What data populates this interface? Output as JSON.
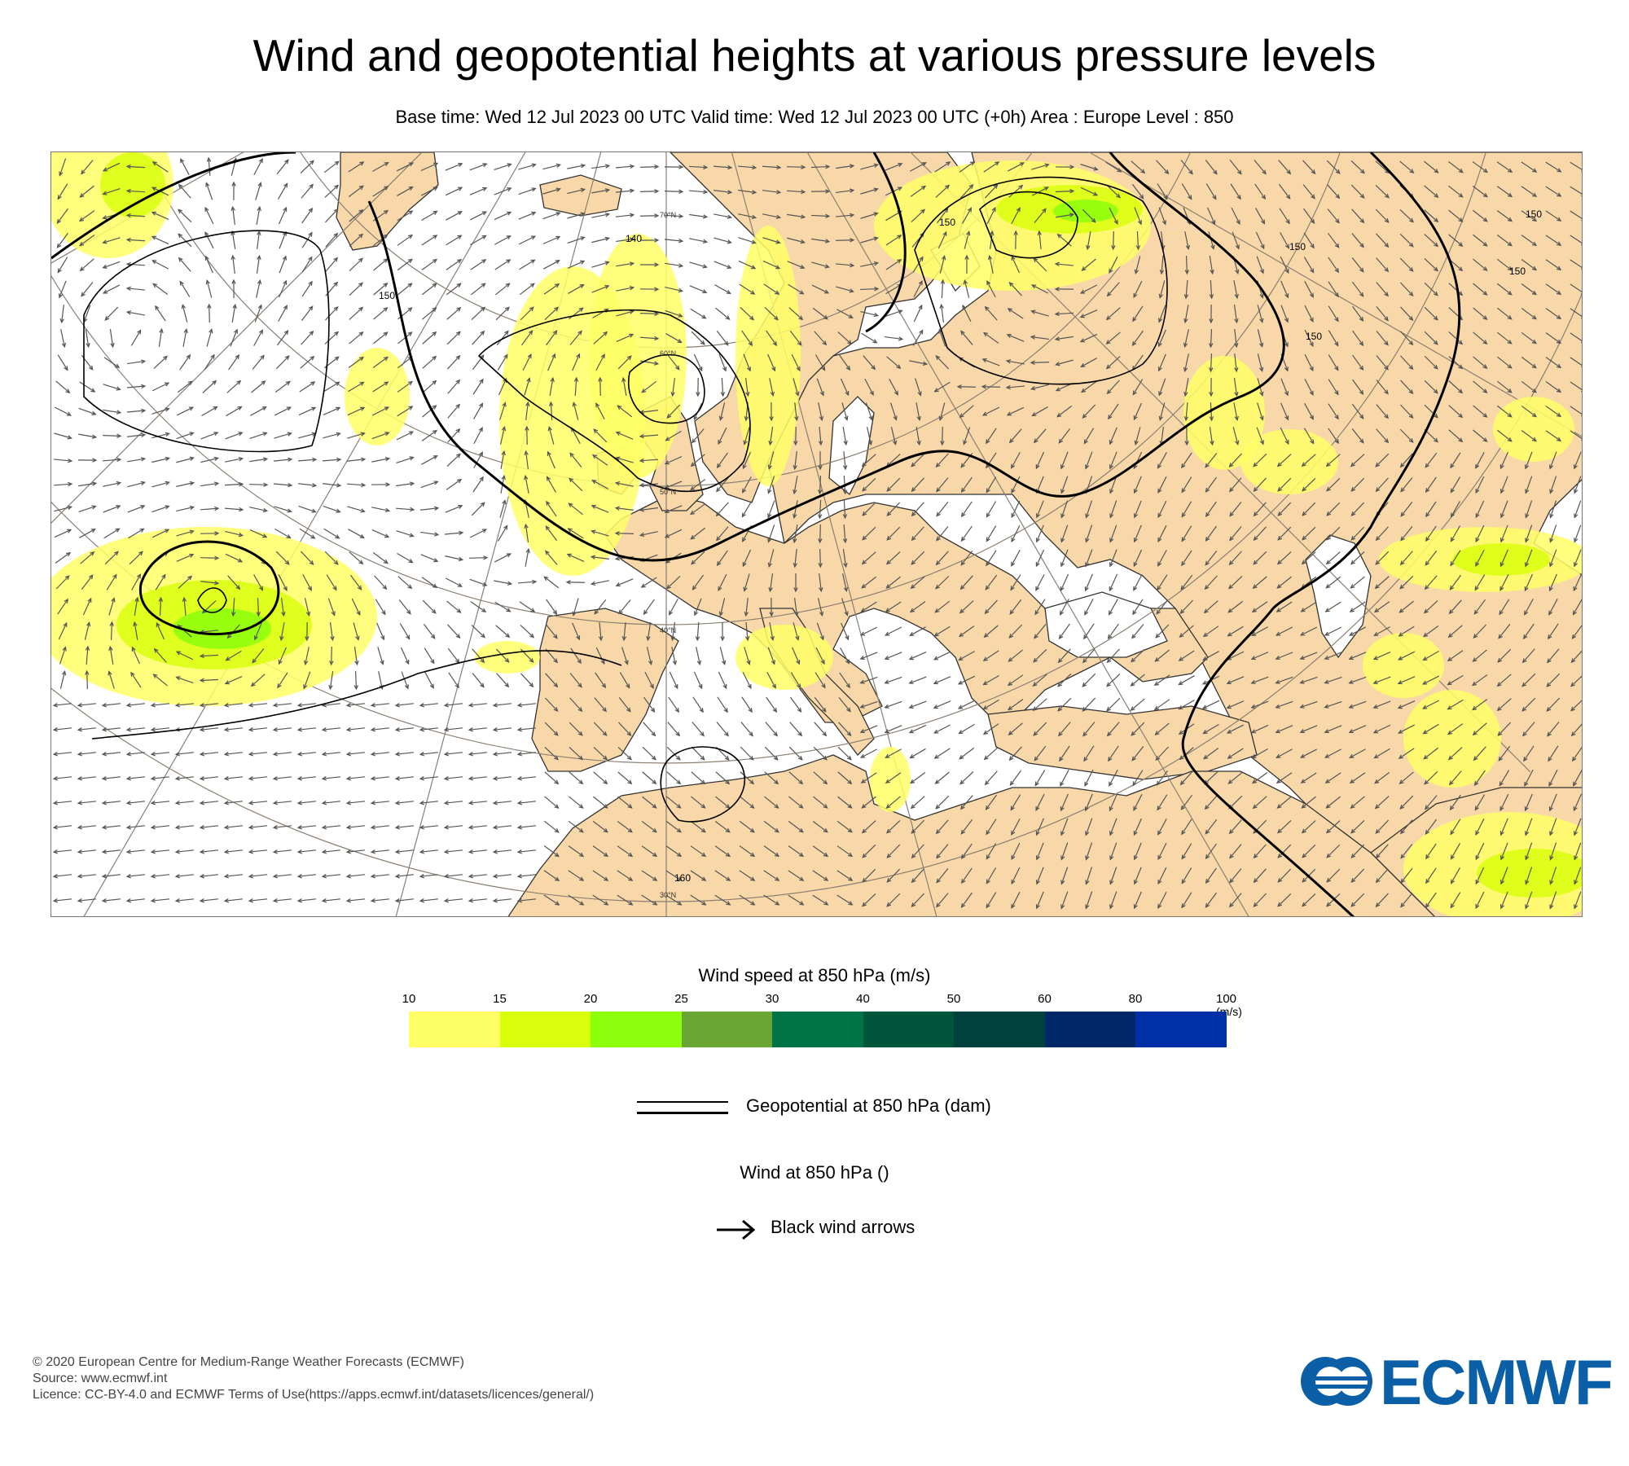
{
  "header": {
    "title": "Wind and geopotential heights at various pressure levels",
    "subtitle": "Base time: Wed 12 Jul 2023 00 UTC Valid time: Wed 12 Jul 2023 00 UTC (+0h) Area : Europe Level : 850"
  },
  "map": {
    "area": "Europe",
    "level": "850",
    "colors": {
      "land": "#f8d8a8",
      "sea": "#ffffff",
      "coast": "#333333",
      "grid": "#8a7f72",
      "contour": "#000000",
      "arrow": "#555555"
    },
    "graticule_labels": [
      "70°N",
      "60°N",
      "50°N",
      "40°N",
      "30°N"
    ],
    "contour_labels": [
      "150",
      "140",
      "150",
      "150",
      "150",
      "150",
      "150",
      "160"
    ],
    "contour_label_values": [
      150,
      140,
      150,
      150,
      150,
      150,
      150,
      160
    ]
  },
  "legend": {
    "wind_title": "Wind speed at 850 hPa (m/s)",
    "ticks": [
      "10",
      "15",
      "20",
      "25",
      "30",
      "40",
      "50",
      "60",
      "80",
      "100"
    ],
    "units": "(m/s)",
    "colors": [
      "#ffff66",
      "#d9ff0d",
      "#8cff0d",
      "#6ba534",
      "#007447",
      "#00553a",
      "#00403d",
      "#002868",
      "#002fa6"
    ],
    "geopotential_label": "Geopotential at 850 hPa (dam)",
    "wind_label": "Wind at 850 hPa ()",
    "arrow_label": "Black wind arrows"
  },
  "footer": {
    "line1": "© 2020 European Centre for Medium-Range Weather Forecasts (ECMWF)",
    "line2": "Source: www.ecmwf.int",
    "line3": "Licence: CC-BY-4.0 and ECMWF Terms of Use(https://apps.ecmwf.int/datasets/licences/general/)"
  },
  "logo": {
    "text": "ECMWF",
    "color": "#0a5fa6",
    "icon": "ecmwf-logo-icon"
  }
}
